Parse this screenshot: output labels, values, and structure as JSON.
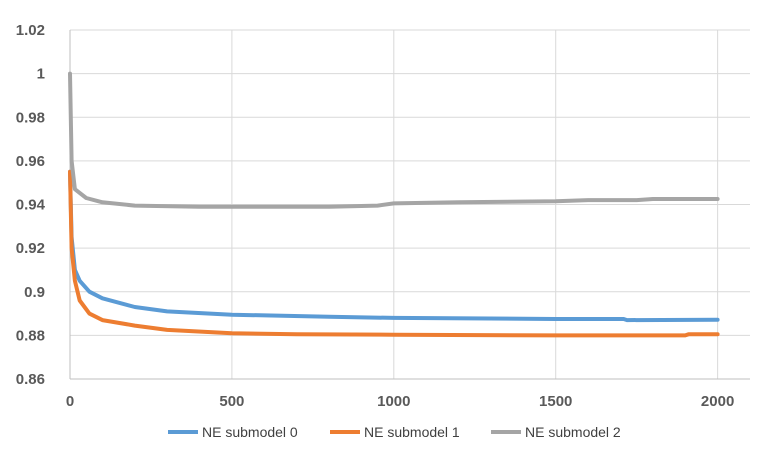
{
  "chart_data": {
    "type": "line",
    "title": "",
    "xlabel": "",
    "ylabel": "",
    "xlim": [
      0,
      2100
    ],
    "ylim": [
      0.86,
      1.02
    ],
    "x_ticks": [
      0,
      500,
      1000,
      1500,
      2000
    ],
    "x_tick_labels": [
      "0",
      "500",
      "1000",
      "1500",
      "2000"
    ],
    "y_ticks": [
      0.86,
      0.88,
      0.9,
      0.92,
      0.94,
      0.96,
      0.98,
      1.0,
      1.02
    ],
    "y_tick_labels": [
      "0.86",
      "0.88",
      "0.9",
      "0.92",
      "0.94",
      "0.96",
      "0.98",
      "1",
      "1.02"
    ],
    "grid": true,
    "legend_position": "bottom",
    "series": [
      {
        "name": "NE submodel 0",
        "color": "#5B9BD5",
        "x": [
          0,
          5,
          15,
          30,
          60,
          100,
          200,
          300,
          500,
          800,
          1000,
          1500,
          1710,
          1720,
          2000
        ],
        "y": [
          0.955,
          0.925,
          0.91,
          0.905,
          0.9,
          0.897,
          0.893,
          0.891,
          0.8895,
          0.8885,
          0.888,
          0.8875,
          0.8875,
          0.887,
          0.8872
        ]
      },
      {
        "name": "NE submodel 1",
        "color": "#ED7D31",
        "x": [
          0,
          5,
          15,
          30,
          60,
          100,
          200,
          300,
          500,
          700,
          1000,
          1500,
          1900,
          1910,
          2000
        ],
        "y": [
          0.955,
          0.92,
          0.905,
          0.896,
          0.89,
          0.887,
          0.8845,
          0.8825,
          0.881,
          0.8805,
          0.8803,
          0.88,
          0.88,
          0.8805,
          0.8805
        ]
      },
      {
        "name": "NE submodel 2",
        "color": "#A5A5A5",
        "x": [
          0,
          5,
          15,
          50,
          100,
          200,
          400,
          600,
          800,
          950,
          1000,
          1200,
          1500,
          1600,
          1750,
          1800,
          2000
        ],
        "y": [
          1.0,
          0.96,
          0.947,
          0.943,
          0.941,
          0.9395,
          0.939,
          0.939,
          0.939,
          0.9395,
          0.9405,
          0.941,
          0.9415,
          0.942,
          0.942,
          0.9425,
          0.9425
        ]
      }
    ]
  }
}
